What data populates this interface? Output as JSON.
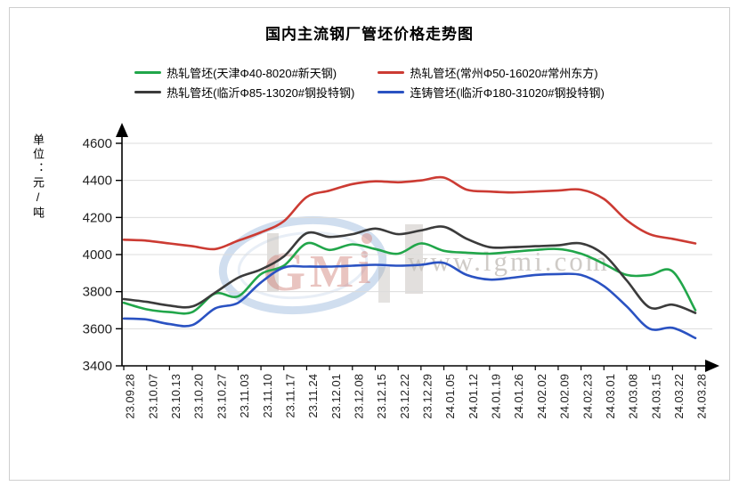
{
  "title": "国内主流钢厂管坯价格走势图",
  "y_axis_label": "单位：元/吨",
  "watermark": {
    "text": "www.lgmi.com",
    "logo": "lgmi-logo-ellipse"
  },
  "colors": {
    "axis": "#000000",
    "grid": "#dcdcdc",
    "tick_text": "#222222"
  },
  "chart_data": {
    "type": "line",
    "title": "国内主流钢厂管坯价格走势图",
    "xlabel": "",
    "ylabel": "单位：元/吨",
    "ylim": [
      3400,
      4600
    ],
    "yticks": [
      3400,
      3600,
      3800,
      4000,
      4200,
      4400,
      4600
    ],
    "grid": true,
    "legend_position": "top",
    "x_tick_rotation": 90,
    "categories": [
      "23.09.28",
      "23.10.07",
      "23.10.13",
      "23.10.20",
      "23.10.27",
      "23.11.03",
      "23.11.10",
      "23.11.17",
      "23.11.24",
      "23.12.01",
      "23.12.08",
      "23.12.15",
      "23.12.22",
      "23.12.29",
      "24.01.05",
      "24.01.12",
      "24.01.19",
      "24.01.26",
      "24.02.02",
      "24.02.09",
      "24.02.23",
      "24.03.01",
      "24.03.08",
      "24.03.15",
      "24.03.22",
      "24.03.28"
    ],
    "series": [
      {
        "name": "热轧管坯(天津Φ40-8020#新天钢)",
        "color": "#21a64a",
        "values": [
          3740,
          3705,
          3690,
          3690,
          3790,
          3775,
          3895,
          3940,
          4060,
          4025,
          4055,
          4030,
          4005,
          4060,
          4020,
          4010,
          4005,
          4015,
          4025,
          4030,
          4005,
          3950,
          3890,
          3890,
          3910,
          3700
        ]
      },
      {
        "name": "热轧管坯(常州Φ50-16020#常州东方)",
        "color": "#cc3b33",
        "values": [
          4080,
          4075,
          4060,
          4045,
          4030,
          4075,
          4120,
          4180,
          4310,
          4345,
          4380,
          4395,
          4390,
          4400,
          4415,
          4350,
          4340,
          4335,
          4340,
          4345,
          4350,
          4300,
          4185,
          4110,
          4085,
          4060
        ]
      },
      {
        "name": "热轧管坯(临沂Φ85-13020#钢投特钢)",
        "color": "#3b3b3b",
        "values": [
          3760,
          3745,
          3725,
          3720,
          3795,
          3875,
          3920,
          3990,
          4115,
          4095,
          4110,
          4140,
          4110,
          4130,
          4150,
          4085,
          4040,
          4040,
          4045,
          4050,
          4060,
          4000,
          3860,
          3715,
          3730,
          3685
        ]
      },
      {
        "name": "连铸管坯(临沂Φ180-31020#钢投特钢)",
        "color": "#2a52c2",
        "values": [
          3655,
          3650,
          3625,
          3620,
          3710,
          3740,
          3850,
          3930,
          3935,
          3935,
          3940,
          3945,
          3940,
          3945,
          3955,
          3890,
          3865,
          3875,
          3890,
          3895,
          3890,
          3830,
          3720,
          3600,
          3605,
          3550
        ]
      }
    ]
  }
}
